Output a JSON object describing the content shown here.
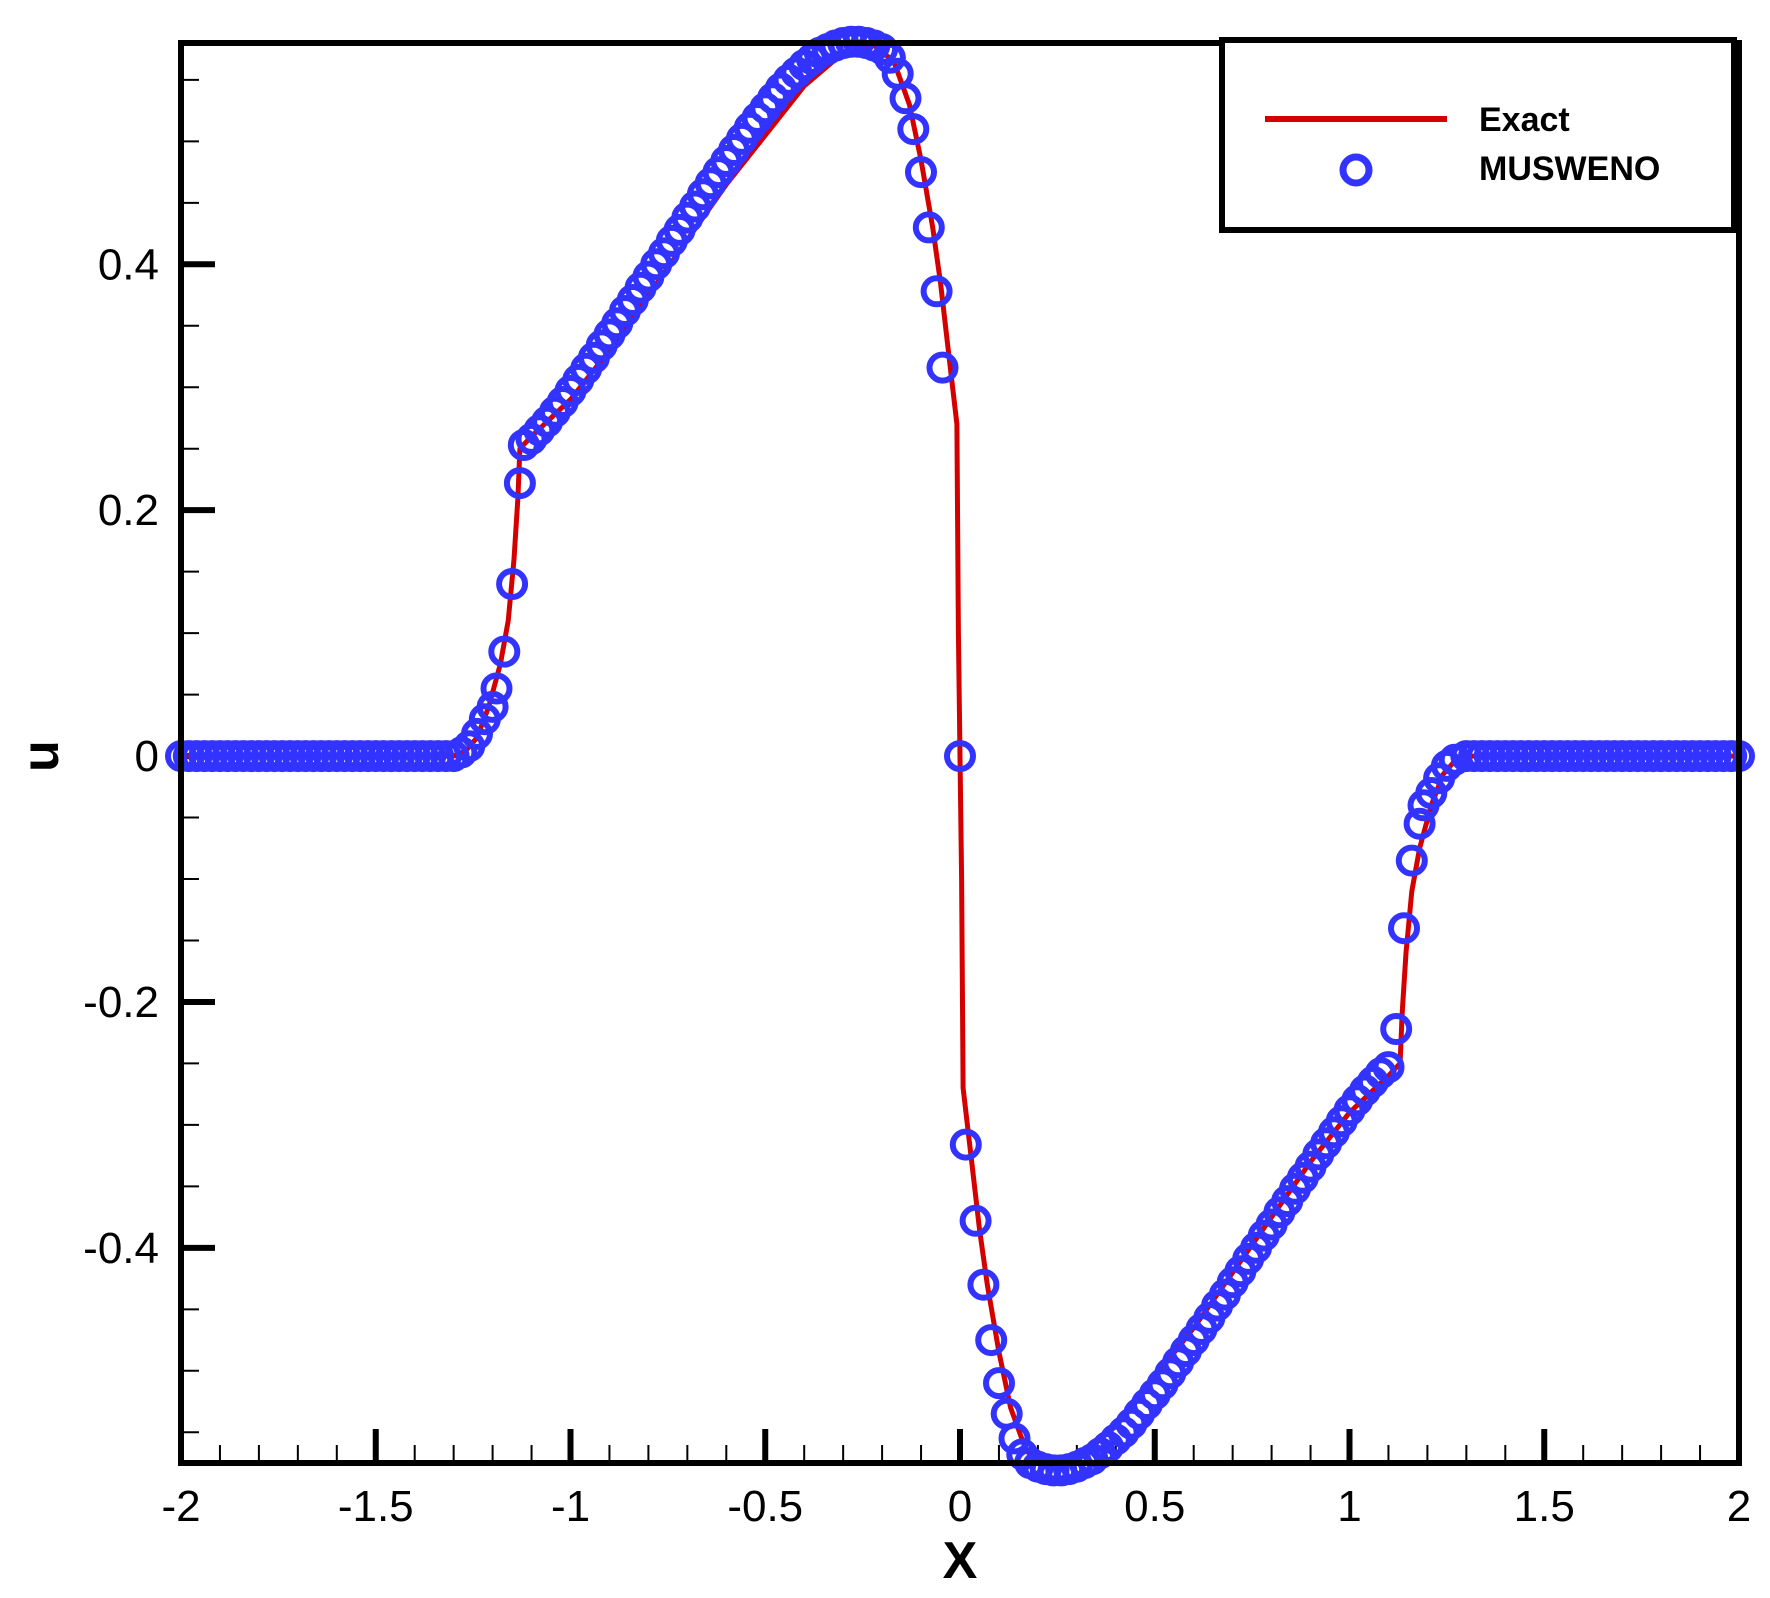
{
  "chart_data": {
    "type": "line",
    "xlabel": "X",
    "ylabel": "u",
    "xlim": [
      -2,
      2
    ],
    "ylim": [
      -0.575,
      0.58
    ],
    "x_ticks": [
      -2,
      -1.5,
      -1,
      -0.5,
      0,
      0.5,
      1,
      1.5,
      2
    ],
    "x_tick_labels": [
      "-2",
      "-1.5",
      "-1",
      "-0.5",
      "0",
      "0.5",
      "1",
      "1.5",
      "2"
    ],
    "y_ticks": [
      -0.4,
      -0.2,
      0,
      0.2,
      0.4
    ],
    "y_tick_labels": [
      "-0.4",
      "-0.2",
      "0",
      "0.2",
      "0.4"
    ],
    "x_minor_step": 0.1,
    "y_minor_step": 0.05,
    "grid": false,
    "legend_position": "top-right",
    "series": [
      {
        "name": "Exact",
        "style": "line",
        "color": "#d40000",
        "points": [
          [
            -2,
            0
          ],
          [
            -1.3,
            0
          ],
          [
            -1.27,
            0.004
          ],
          [
            -1.24,
            0.015
          ],
          [
            -1.21,
            0.04
          ],
          [
            -1.18,
            0.075
          ],
          [
            -1.16,
            0.11
          ],
          [
            -1.145,
            0.16
          ],
          [
            -1.135,
            0.21
          ],
          [
            -1.13,
            0.25
          ],
          [
            -1.1,
            0.26
          ],
          [
            -1.0,
            0.29
          ],
          [
            -0.9,
            0.33
          ],
          [
            -0.8,
            0.375
          ],
          [
            -0.7,
            0.42
          ],
          [
            -0.6,
            0.465
          ],
          [
            -0.5,
            0.505
          ],
          [
            -0.4,
            0.545
          ],
          [
            -0.3,
            0.572
          ],
          [
            -0.22,
            0.578
          ],
          [
            -0.17,
            0.565
          ],
          [
            -0.13,
            0.53
          ],
          [
            -0.1,
            0.485
          ],
          [
            -0.07,
            0.43
          ],
          [
            -0.05,
            0.385
          ],
          [
            -0.03,
            0.33
          ],
          [
            -0.008,
            0.27
          ],
          [
            -0.004,
            0.1
          ],
          [
            0,
            0
          ],
          [
            0.004,
            -0.1
          ],
          [
            0.008,
            -0.27
          ],
          [
            0.03,
            -0.33
          ],
          [
            0.05,
            -0.385
          ],
          [
            0.07,
            -0.43
          ],
          [
            0.1,
            -0.485
          ],
          [
            0.13,
            -0.53
          ],
          [
            0.17,
            -0.565
          ],
          [
            0.22,
            -0.578
          ],
          [
            0.3,
            -0.572
          ],
          [
            0.4,
            -0.545
          ],
          [
            0.5,
            -0.505
          ],
          [
            0.6,
            -0.465
          ],
          [
            0.7,
            -0.42
          ],
          [
            0.8,
            -0.375
          ],
          [
            0.9,
            -0.33
          ],
          [
            1.0,
            -0.29
          ],
          [
            1.1,
            -0.26
          ],
          [
            1.13,
            -0.25
          ],
          [
            1.135,
            -0.21
          ],
          [
            1.145,
            -0.16
          ],
          [
            1.16,
            -0.11
          ],
          [
            1.18,
            -0.075
          ],
          [
            1.21,
            -0.04
          ],
          [
            1.24,
            -0.015
          ],
          [
            1.27,
            -0.004
          ],
          [
            1.3,
            0
          ],
          [
            2,
            0
          ]
        ]
      },
      {
        "name": "MUSWENO",
        "style": "markers",
        "marker": "circle-open",
        "color": "#3333ff",
        "points": [
          [
            -2.0,
            0
          ],
          [
            -1.98,
            0
          ],
          [
            -1.96,
            0
          ],
          [
            -1.94,
            0
          ],
          [
            -1.92,
            0
          ],
          [
            -1.9,
            0
          ],
          [
            -1.88,
            0
          ],
          [
            -1.86,
            0
          ],
          [
            -1.84,
            0
          ],
          [
            -1.82,
            0
          ],
          [
            -1.8,
            0
          ],
          [
            -1.78,
            0
          ],
          [
            -1.76,
            0
          ],
          [
            -1.74,
            0
          ],
          [
            -1.72,
            0
          ],
          [
            -1.7,
            0
          ],
          [
            -1.68,
            0
          ],
          [
            -1.66,
            0
          ],
          [
            -1.64,
            0
          ],
          [
            -1.62,
            0
          ],
          [
            -1.6,
            0
          ],
          [
            -1.58,
            0
          ],
          [
            -1.56,
            0
          ],
          [
            -1.54,
            0
          ],
          [
            -1.52,
            0
          ],
          [
            -1.5,
            0
          ],
          [
            -1.48,
            0
          ],
          [
            -1.46,
            0
          ],
          [
            -1.44,
            0
          ],
          [
            -1.42,
            0
          ],
          [
            -1.4,
            0
          ],
          [
            -1.38,
            0
          ],
          [
            -1.36,
            0
          ],
          [
            -1.34,
            0
          ],
          [
            -1.32,
            0
          ],
          [
            -1.3,
            0
          ],
          [
            -1.28,
            0.003
          ],
          [
            -1.26,
            0.008
          ],
          [
            -1.24,
            0.018
          ],
          [
            -1.22,
            0.03
          ],
          [
            -1.2,
            0.04
          ],
          [
            -1.19,
            0.055
          ],
          [
            -1.17,
            0.085
          ],
          [
            -1.15,
            0.14
          ],
          [
            -1.13,
            0.222
          ],
          [
            -1.12,
            0.253
          ],
          [
            -1.1,
            0.258
          ],
          [
            -1.08,
            0.265
          ],
          [
            -1.06,
            0.272
          ],
          [
            -1.04,
            0.28
          ],
          [
            -1.02,
            0.288
          ],
          [
            -1.0,
            0.297
          ],
          [
            -0.98,
            0.306
          ],
          [
            -0.96,
            0.315
          ],
          [
            -0.94,
            0.324
          ],
          [
            -0.92,
            0.334
          ],
          [
            -0.9,
            0.343
          ],
          [
            -0.88,
            0.352
          ],
          [
            -0.86,
            0.362
          ],
          [
            -0.84,
            0.371
          ],
          [
            -0.82,
            0.381
          ],
          [
            -0.8,
            0.39
          ],
          [
            -0.78,
            0.4
          ],
          [
            -0.76,
            0.409
          ],
          [
            -0.74,
            0.419
          ],
          [
            -0.72,
            0.428
          ],
          [
            -0.7,
            0.438
          ],
          [
            -0.68,
            0.447
          ],
          [
            -0.66,
            0.457
          ],
          [
            -0.64,
            0.466
          ],
          [
            -0.62,
            0.475
          ],
          [
            -0.6,
            0.484
          ],
          [
            -0.58,
            0.493
          ],
          [
            -0.56,
            0.502
          ],
          [
            -0.54,
            0.511
          ],
          [
            -0.52,
            0.519
          ],
          [
            -0.5,
            0.527
          ],
          [
            -0.48,
            0.535
          ],
          [
            -0.46,
            0.543
          ],
          [
            -0.44,
            0.55
          ],
          [
            -0.42,
            0.556
          ],
          [
            -0.4,
            0.562
          ],
          [
            -0.38,
            0.567
          ],
          [
            -0.36,
            0.572
          ],
          [
            -0.34,
            0.575
          ],
          [
            -0.32,
            0.578
          ],
          [
            -0.3,
            0.58
          ],
          [
            -0.28,
            0.581
          ],
          [
            -0.26,
            0.581
          ],
          [
            -0.24,
            0.58
          ],
          [
            -0.22,
            0.578
          ],
          [
            -0.2,
            0.575
          ],
          [
            -0.18,
            0.568
          ],
          [
            -0.16,
            0.555
          ],
          [
            -0.14,
            0.535
          ],
          [
            -0.12,
            0.51
          ],
          [
            -0.1,
            0.475
          ],
          [
            -0.08,
            0.43
          ],
          [
            -0.06,
            0.378
          ],
          [
            -0.045,
            0.316
          ],
          [
            0,
            0
          ],
          [
            0.015,
            -0.316
          ],
          [
            0.04,
            -0.378
          ],
          [
            0.06,
            -0.43
          ],
          [
            0.08,
            -0.475
          ],
          [
            0.1,
            -0.51
          ],
          [
            0.12,
            -0.535
          ],
          [
            0.14,
            -0.555
          ],
          [
            0.16,
            -0.568
          ],
          [
            0.18,
            -0.575
          ],
          [
            0.2,
            -0.578
          ],
          [
            0.22,
            -0.58
          ],
          [
            0.24,
            -0.581
          ],
          [
            0.26,
            -0.581
          ],
          [
            0.28,
            -0.58
          ],
          [
            0.3,
            -0.578
          ],
          [
            0.32,
            -0.575
          ],
          [
            0.34,
            -0.572
          ],
          [
            0.36,
            -0.567
          ],
          [
            0.38,
            -0.562
          ],
          [
            0.4,
            -0.556
          ],
          [
            0.42,
            -0.55
          ],
          [
            0.44,
            -0.543
          ],
          [
            0.46,
            -0.535
          ],
          [
            0.48,
            -0.527
          ],
          [
            0.5,
            -0.519
          ],
          [
            0.52,
            -0.511
          ],
          [
            0.54,
            -0.502
          ],
          [
            0.56,
            -0.493
          ],
          [
            0.58,
            -0.484
          ],
          [
            0.6,
            -0.475
          ],
          [
            0.62,
            -0.466
          ],
          [
            0.64,
            -0.457
          ],
          [
            0.66,
            -0.447
          ],
          [
            0.68,
            -0.438
          ],
          [
            0.7,
            -0.428
          ],
          [
            0.72,
            -0.419
          ],
          [
            0.74,
            -0.409
          ],
          [
            0.76,
            -0.4
          ],
          [
            0.78,
            -0.39
          ],
          [
            0.8,
            -0.381
          ],
          [
            0.82,
            -0.371
          ],
          [
            0.84,
            -0.362
          ],
          [
            0.86,
            -0.352
          ],
          [
            0.88,
            -0.343
          ],
          [
            0.9,
            -0.334
          ],
          [
            0.92,
            -0.324
          ],
          [
            0.94,
            -0.315
          ],
          [
            0.96,
            -0.306
          ],
          [
            0.98,
            -0.297
          ],
          [
            1.0,
            -0.288
          ],
          [
            1.02,
            -0.28
          ],
          [
            1.04,
            -0.272
          ],
          [
            1.06,
            -0.265
          ],
          [
            1.08,
            -0.258
          ],
          [
            1.1,
            -0.253
          ],
          [
            1.12,
            -0.222
          ],
          [
            1.14,
            -0.14
          ],
          [
            1.16,
            -0.085
          ],
          [
            1.18,
            -0.055
          ],
          [
            1.19,
            -0.04
          ],
          [
            1.21,
            -0.03
          ],
          [
            1.23,
            -0.018
          ],
          [
            1.25,
            -0.008
          ],
          [
            1.27,
            -0.003
          ],
          [
            1.3,
            0
          ],
          [
            1.32,
            0
          ],
          [
            1.34,
            0
          ],
          [
            1.36,
            0
          ],
          [
            1.38,
            0
          ],
          [
            1.4,
            0
          ],
          [
            1.42,
            0
          ],
          [
            1.44,
            0
          ],
          [
            1.46,
            0
          ],
          [
            1.48,
            0
          ],
          [
            1.5,
            0
          ],
          [
            1.52,
            0
          ],
          [
            1.54,
            0
          ],
          [
            1.56,
            0
          ],
          [
            1.58,
            0
          ],
          [
            1.6,
            0
          ],
          [
            1.62,
            0
          ],
          [
            1.64,
            0
          ],
          [
            1.66,
            0
          ],
          [
            1.68,
            0
          ],
          [
            1.7,
            0
          ],
          [
            1.72,
            0
          ],
          [
            1.74,
            0
          ],
          [
            1.76,
            0
          ],
          [
            1.78,
            0
          ],
          [
            1.8,
            0
          ],
          [
            1.82,
            0
          ],
          [
            1.84,
            0
          ],
          [
            1.86,
            0
          ],
          [
            1.88,
            0
          ],
          [
            1.9,
            0
          ],
          [
            1.92,
            0
          ],
          [
            1.94,
            0
          ],
          [
            1.96,
            0
          ],
          [
            1.98,
            0
          ],
          [
            2.0,
            0
          ]
        ]
      }
    ]
  }
}
